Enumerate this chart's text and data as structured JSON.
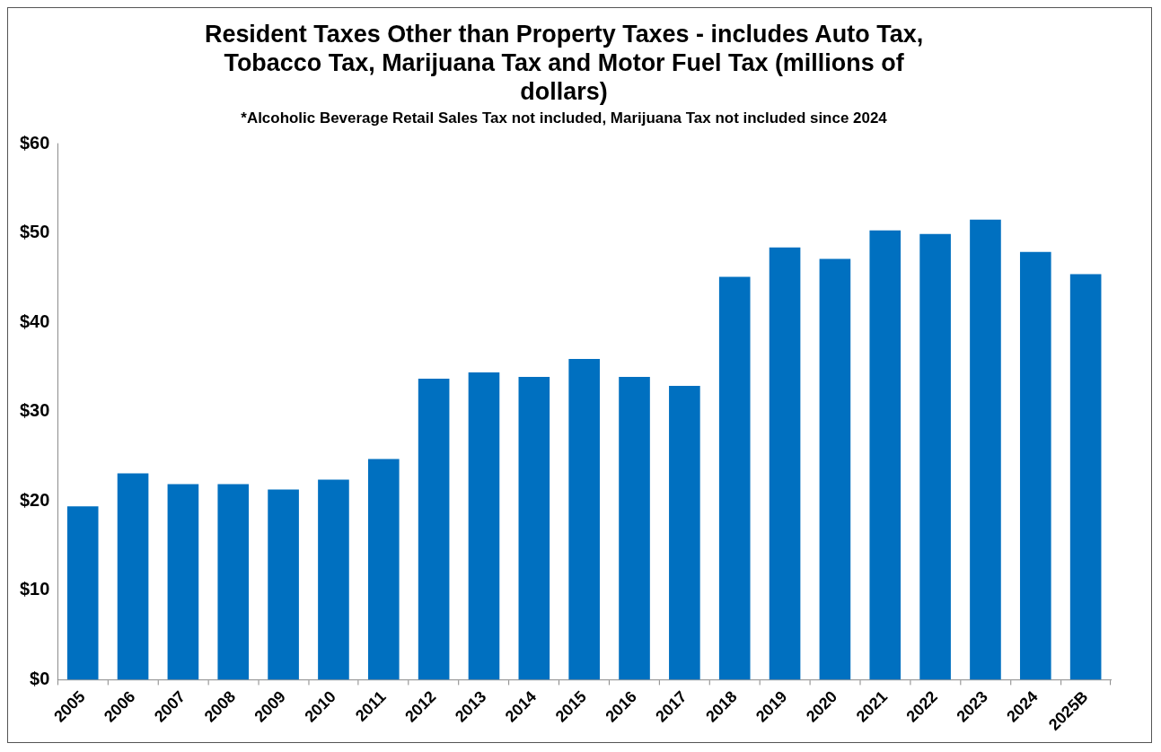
{
  "chart_data": {
    "type": "bar",
    "title": "Resident Taxes Other than Property Taxes - includes Auto Tax, Tobacco Tax, Marijuana Tax and Motor Fuel Tax (millions of dollars)",
    "subtitle": "*Alcoholic Beverage Retail Sales Tax not included, Marijuana Tax not included since 2024",
    "categories": [
      "2005",
      "2006",
      "2007",
      "2008",
      "2009",
      "2010",
      "2011",
      "2012",
      "2013",
      "2014",
      "2015",
      "2016",
      "2017",
      "2018",
      "2019",
      "2020",
      "2021",
      "2022",
      "2023",
      "2024",
      "2025B"
    ],
    "values": [
      19.4,
      23.1,
      21.9,
      21.9,
      21.3,
      22.4,
      24.7,
      33.7,
      34.4,
      33.9,
      35.9,
      33.9,
      32.9,
      45.1,
      48.4,
      47.1,
      50.3,
      49.9,
      51.5,
      47.9,
      45.4
    ],
    "color": "#0070c0",
    "ylim": [
      0,
      60
    ],
    "yticks": [
      {
        "value": 0,
        "label": "$0"
      },
      {
        "value": 10,
        "label": "$10"
      },
      {
        "value": 20,
        "label": "$20"
      },
      {
        "value": 30,
        "label": "$30"
      },
      {
        "value": 40,
        "label": "$40"
      },
      {
        "value": 50,
        "label": "$50"
      },
      {
        "value": 60,
        "label": "$60"
      }
    ],
    "grid": false,
    "legend": false
  }
}
